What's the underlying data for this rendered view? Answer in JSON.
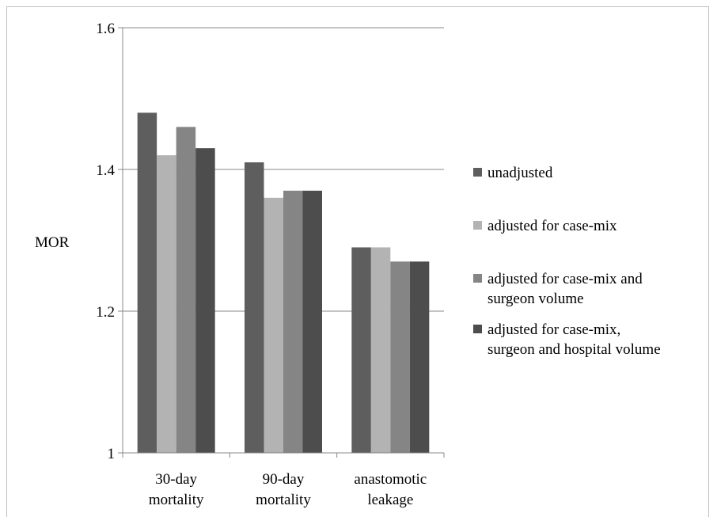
{
  "chart_data": {
    "type": "bar",
    "ylabel": "MOR",
    "ylim": [
      1,
      1.6
    ],
    "yticks": [
      1,
      1.2,
      1.4,
      1.6
    ],
    "yticklabels": [
      "1",
      "1.2",
      "1.4",
      "1.6"
    ],
    "grid": true,
    "legend_position": "right",
    "categories": [
      [
        "30-day",
        "mortality"
      ],
      [
        "90-day",
        "mortality"
      ],
      [
        "anastomotic",
        "leakage"
      ]
    ],
    "series": [
      {
        "name": [
          "unadjusted"
        ],
        "color": "#5e5e5e",
        "values": [
          1.48,
          1.41,
          1.29
        ]
      },
      {
        "name": [
          "adjusted for case-mix"
        ],
        "color": "#b3b3b3",
        "values": [
          1.42,
          1.36,
          1.29
        ]
      },
      {
        "name": [
          "adjusted for case-mix and",
          "surgeon volume"
        ],
        "color": "#858585",
        "values": [
          1.46,
          1.37,
          1.27
        ]
      },
      {
        "name": [
          "adjusted for case-mix,",
          "surgeon and hospital volume"
        ],
        "color": "#4d4d4d",
        "values": [
          1.43,
          1.37,
          1.27
        ]
      }
    ]
  }
}
